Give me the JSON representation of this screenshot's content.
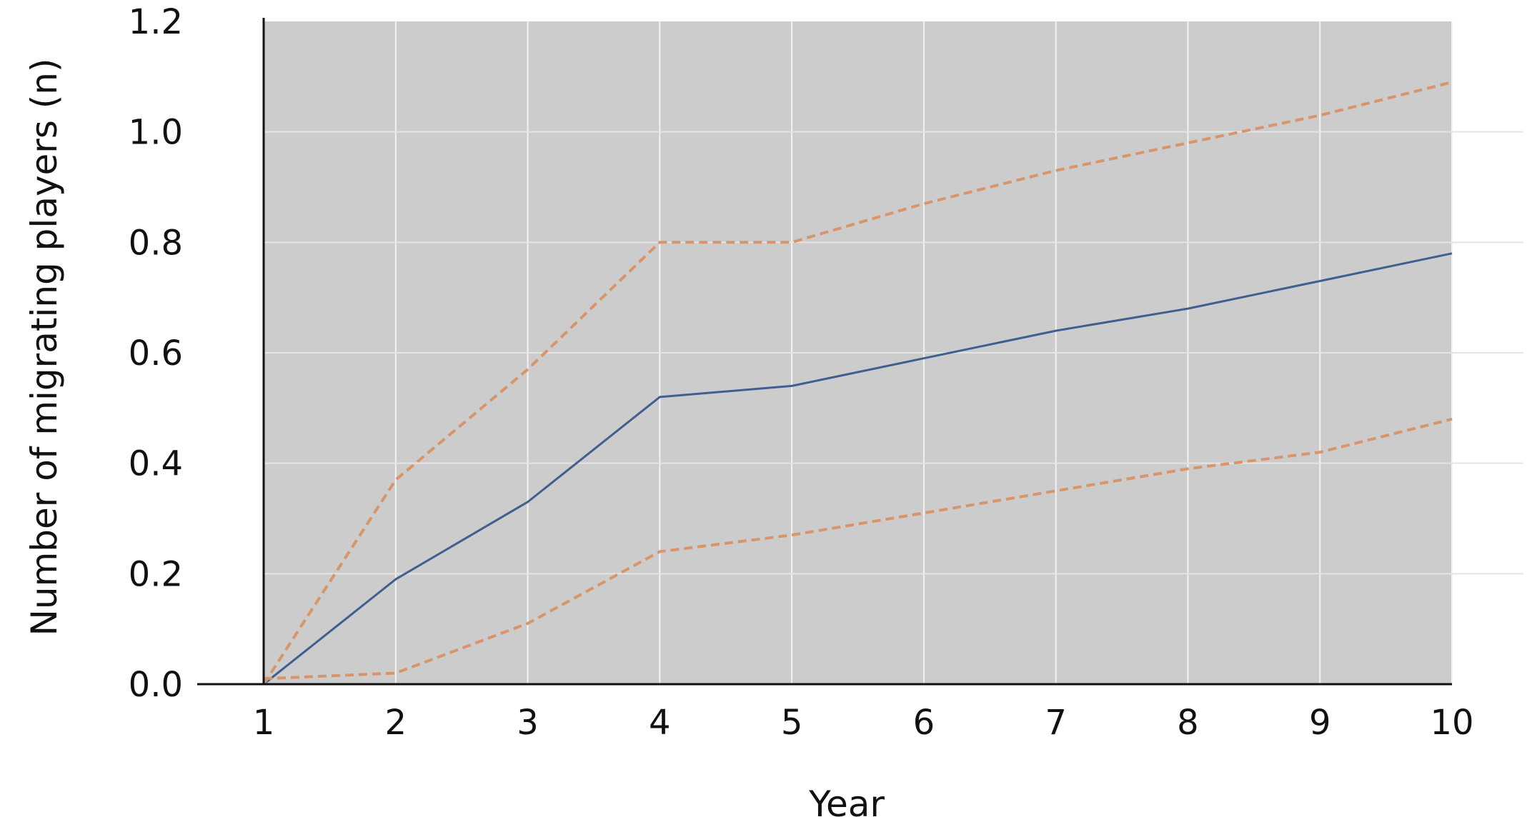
{
  "chart_data": {
    "type": "line",
    "title": "",
    "xlabel": "Year",
    "ylabel": "Number of migrating players (n)",
    "x": [
      1,
      2,
      3,
      4,
      5,
      6,
      7,
      8,
      9,
      10
    ],
    "x_tick_labels": [
      "1",
      "2",
      "3",
      "4",
      "5",
      "6",
      "7",
      "8",
      "9",
      "10"
    ],
    "y_tick_labels": [
      "0.0",
      "0.2",
      "0.4",
      "0.6",
      "0.8",
      "1.0",
      "1.2"
    ],
    "y_ticks": [
      0,
      0.2,
      0.4,
      0.6,
      0.8,
      1.0,
      1.2
    ],
    "xlim": [
      1,
      10
    ],
    "ylim": [
      0,
      1.2
    ],
    "grid": true,
    "legend": "none",
    "plot_background": "#cccccc",
    "grid_color": "#f2f2f2",
    "series": [
      {
        "style": "solid",
        "color": "#3f5f8f",
        "values": [
          0.0,
          0.19,
          0.33,
          0.52,
          0.54,
          0.59,
          0.64,
          0.68,
          0.73,
          0.78
        ]
      },
      {
        "style": "dashed",
        "color": "#d9956a",
        "values": [
          0.0,
          0.37,
          0.57,
          0.8,
          0.8,
          0.87,
          0.93,
          0.98,
          1.03,
          1.09
        ]
      },
      {
        "style": "dashed",
        "color": "#d9956a",
        "values": [
          0.01,
          0.02,
          0.11,
          0.24,
          0.27,
          0.31,
          0.35,
          0.39,
          0.42,
          0.48
        ]
      }
    ]
  }
}
